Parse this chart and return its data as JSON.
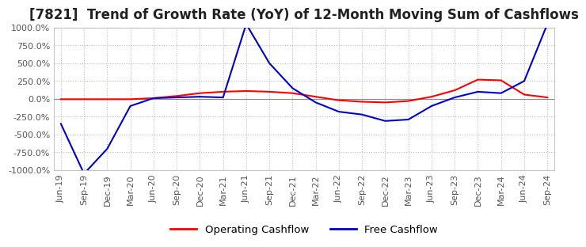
{
  "title": "[7821]  Trend of Growth Rate (YoY) of 12-Month Moving Sum of Cashflows",
  "title_fontsize": 12,
  "ylim": [
    -1000,
    1000
  ],
  "yticks": [
    -1000,
    -750,
    -500,
    -250,
    0,
    250,
    500,
    750,
    1000
  ],
  "ytick_labels": [
    "-1000.0%",
    "-750.0%",
    "-500.0%",
    "-250.0%",
    "0.0%",
    "250.0%",
    "500.0%",
    "750.0%",
    "1000.0%"
  ],
  "x_labels": [
    "Jun-19",
    "Sep-19",
    "Dec-19",
    "Mar-20",
    "Jun-20",
    "Sep-20",
    "Dec-20",
    "Mar-21",
    "Jun-21",
    "Sep-21",
    "Dec-21",
    "Mar-22",
    "Jun-22",
    "Sep-22",
    "Dec-22",
    "Mar-23",
    "Jun-23",
    "Sep-23",
    "Dec-23",
    "Mar-24",
    "Jun-24",
    "Sep-24"
  ],
  "operating_cashflow": [
    -5,
    -5,
    -5,
    -5,
    10,
    40,
    80,
    100,
    110,
    100,
    80,
    30,
    -20,
    -40,
    -50,
    -30,
    30,
    120,
    270,
    260,
    60,
    20
  ],
  "free_cashflow": [
    -350,
    -1050,
    -700,
    -100,
    10,
    20,
    30,
    20,
    1050,
    500,
    150,
    -50,
    -180,
    -220,
    -310,
    -290,
    -100,
    20,
    100,
    80,
    250,
    1050
  ],
  "op_color": "#ff0000",
  "fc_color": "#0000cd",
  "bg_color": "#ffffff",
  "grid_color": "#bbbbbb",
  "legend_fontsize": 9.5,
  "tick_fontsize": 8,
  "tick_color": "#555555"
}
